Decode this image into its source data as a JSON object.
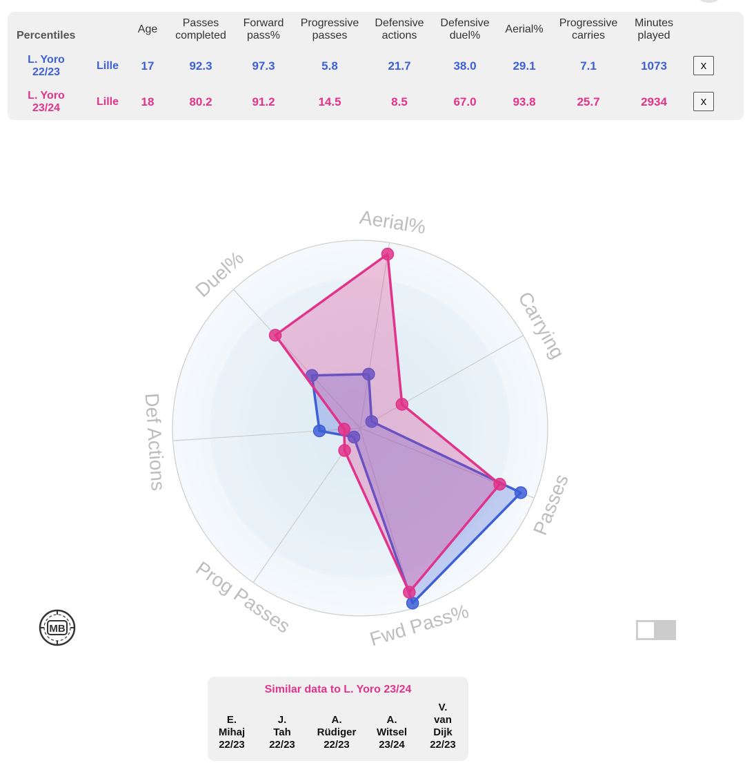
{
  "table": {
    "title": "Percentiles",
    "columns": [
      "Age",
      "Passes completed",
      "Forward pass%",
      "Progressive passes",
      "Defensive actions",
      "Defensive duel%",
      "Aerial%",
      "Progressive carries",
      "Minutes played"
    ],
    "rows": [
      {
        "player_line1": "L. Yoro",
        "player_line2": "22/23",
        "team": "Lille",
        "values": [
          "17",
          "92.3",
          "97.3",
          "5.8",
          "21.7",
          "38.0",
          "29.1",
          "7.1",
          "1073"
        ],
        "color": "#3d5fd6",
        "remove_label": "x"
      },
      {
        "player_line1": "L. Yoro",
        "player_line2": "23/24",
        "team": "Lille",
        "values": [
          "18",
          "80.2",
          "91.2",
          "14.5",
          "8.5",
          "67.0",
          "93.8",
          "25.7",
          "2934"
        ],
        "color": "#e0338a",
        "remove_label": "x"
      }
    ]
  },
  "chart_data": {
    "type": "radar",
    "axes": [
      "Aerial%",
      "Carrying",
      "Passes",
      "Fwd Pass%",
      "Prog Passes",
      "Def Actions",
      "Duel%"
    ],
    "range": [
      0,
      100
    ],
    "series": [
      {
        "name": "L. Yoro 22/23",
        "values": [
          29.1,
          7.1,
          92.3,
          97.3,
          5.8,
          21.7,
          38.0
        ],
        "color": "#3d5fd6"
      },
      {
        "name": "L. Yoro 23/24",
        "values": [
          93.8,
          25.7,
          80.2,
          91.2,
          14.5,
          8.5,
          67.0
        ],
        "color": "#e0338a"
      }
    ]
  },
  "logo": {
    "text": "MB"
  },
  "similar": {
    "title": "Similar data to L. Yoro 23/24",
    "players": [
      {
        "lines": [
          "E.",
          "Mihaj",
          "22/23"
        ]
      },
      {
        "lines": [
          "J.",
          "Tah",
          "22/23"
        ]
      },
      {
        "lines": [
          "A.",
          "Rüdiger",
          "22/23"
        ]
      },
      {
        "lines": [
          "A.",
          "Witsel",
          "23/24"
        ]
      },
      {
        "lines": [
          "V.",
          "van",
          "Dijk",
          "22/23"
        ]
      }
    ]
  }
}
